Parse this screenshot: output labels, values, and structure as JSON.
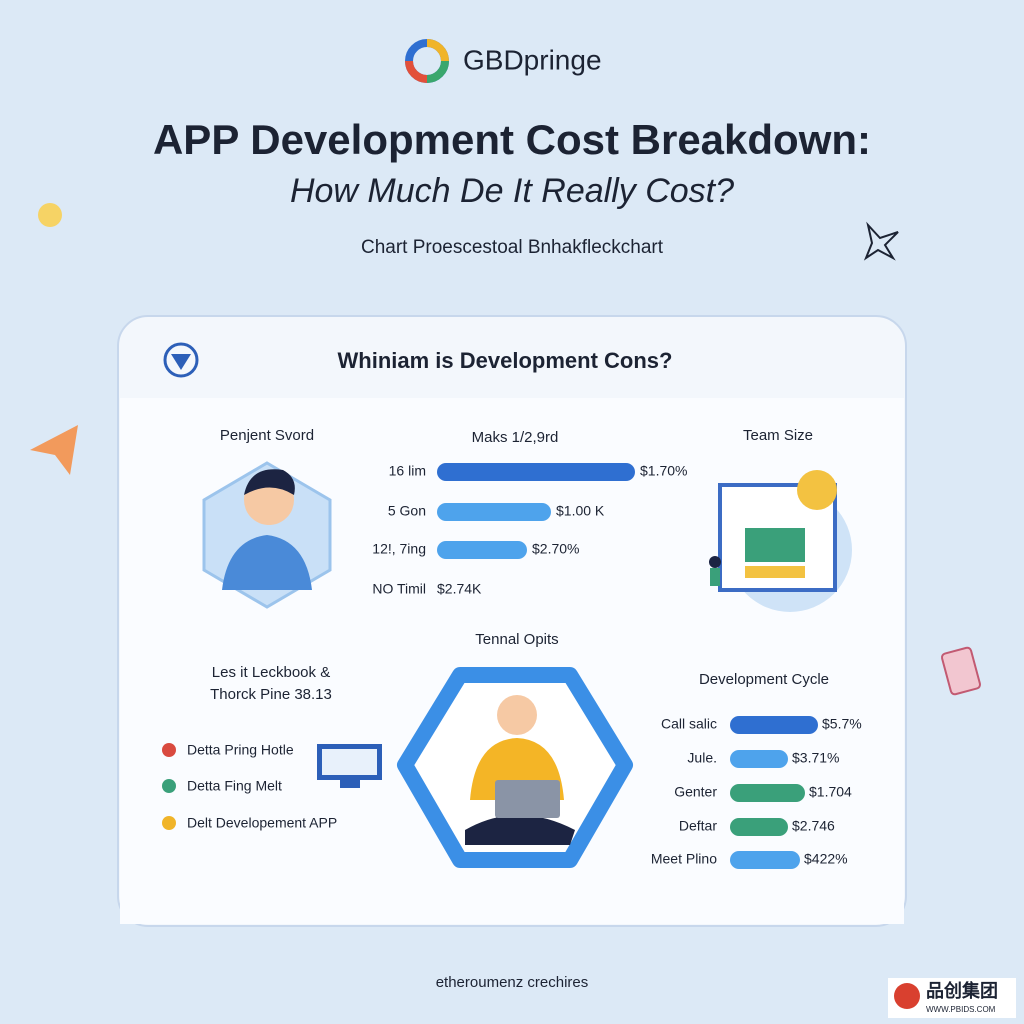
{
  "header": {
    "logo": "GBDpringe",
    "title": "APP Development Cost Breakdown:",
    "subtitle": "How Much De It Really Cost?",
    "caption": "Chart Proescestoal Bnhakfleckchart"
  },
  "card": {
    "heading": "Whiniam is Development Cons?",
    "profile": {
      "label": "Penjent Svord"
    },
    "makes": {
      "label": "Maks 1/2,9rd",
      "rows": [
        {
          "name": "16 lim",
          "value": "$1.70%"
        },
        {
          "name": "5 Gon",
          "value": "$1.00 K"
        },
        {
          "name": "12!, 7ing",
          "value": "$2.70%"
        },
        {
          "name": "NO Timil",
          "value": "$2.74K"
        }
      ]
    },
    "team": {
      "label": "Team Size"
    },
    "tennal": {
      "label": "Tennal Opits"
    },
    "legend": {
      "title": [
        "Les it Leckbook &",
        "Thorck Pine 38.13"
      ],
      "items": [
        "Detta Pring Hotle",
        "Detta Fing Melt",
        "Delt Developement APP"
      ]
    },
    "cycle": {
      "label": "Development Cycle",
      "rows": [
        {
          "name": "Call salic",
          "value": "$5.7%"
        },
        {
          "name": "Jule.",
          "value": "$3.71%"
        },
        {
          "name": "Genter",
          "value": "$1.704"
        },
        {
          "name": "Deftar",
          "value": "$2.746"
        },
        {
          "name": "Meet Plino",
          "value": "$422%"
        }
      ]
    }
  },
  "footer": "etheroumenz crechires",
  "watermark": {
    "brand": "品创集团",
    "url": "WWW.PBIDS.COM"
  }
}
